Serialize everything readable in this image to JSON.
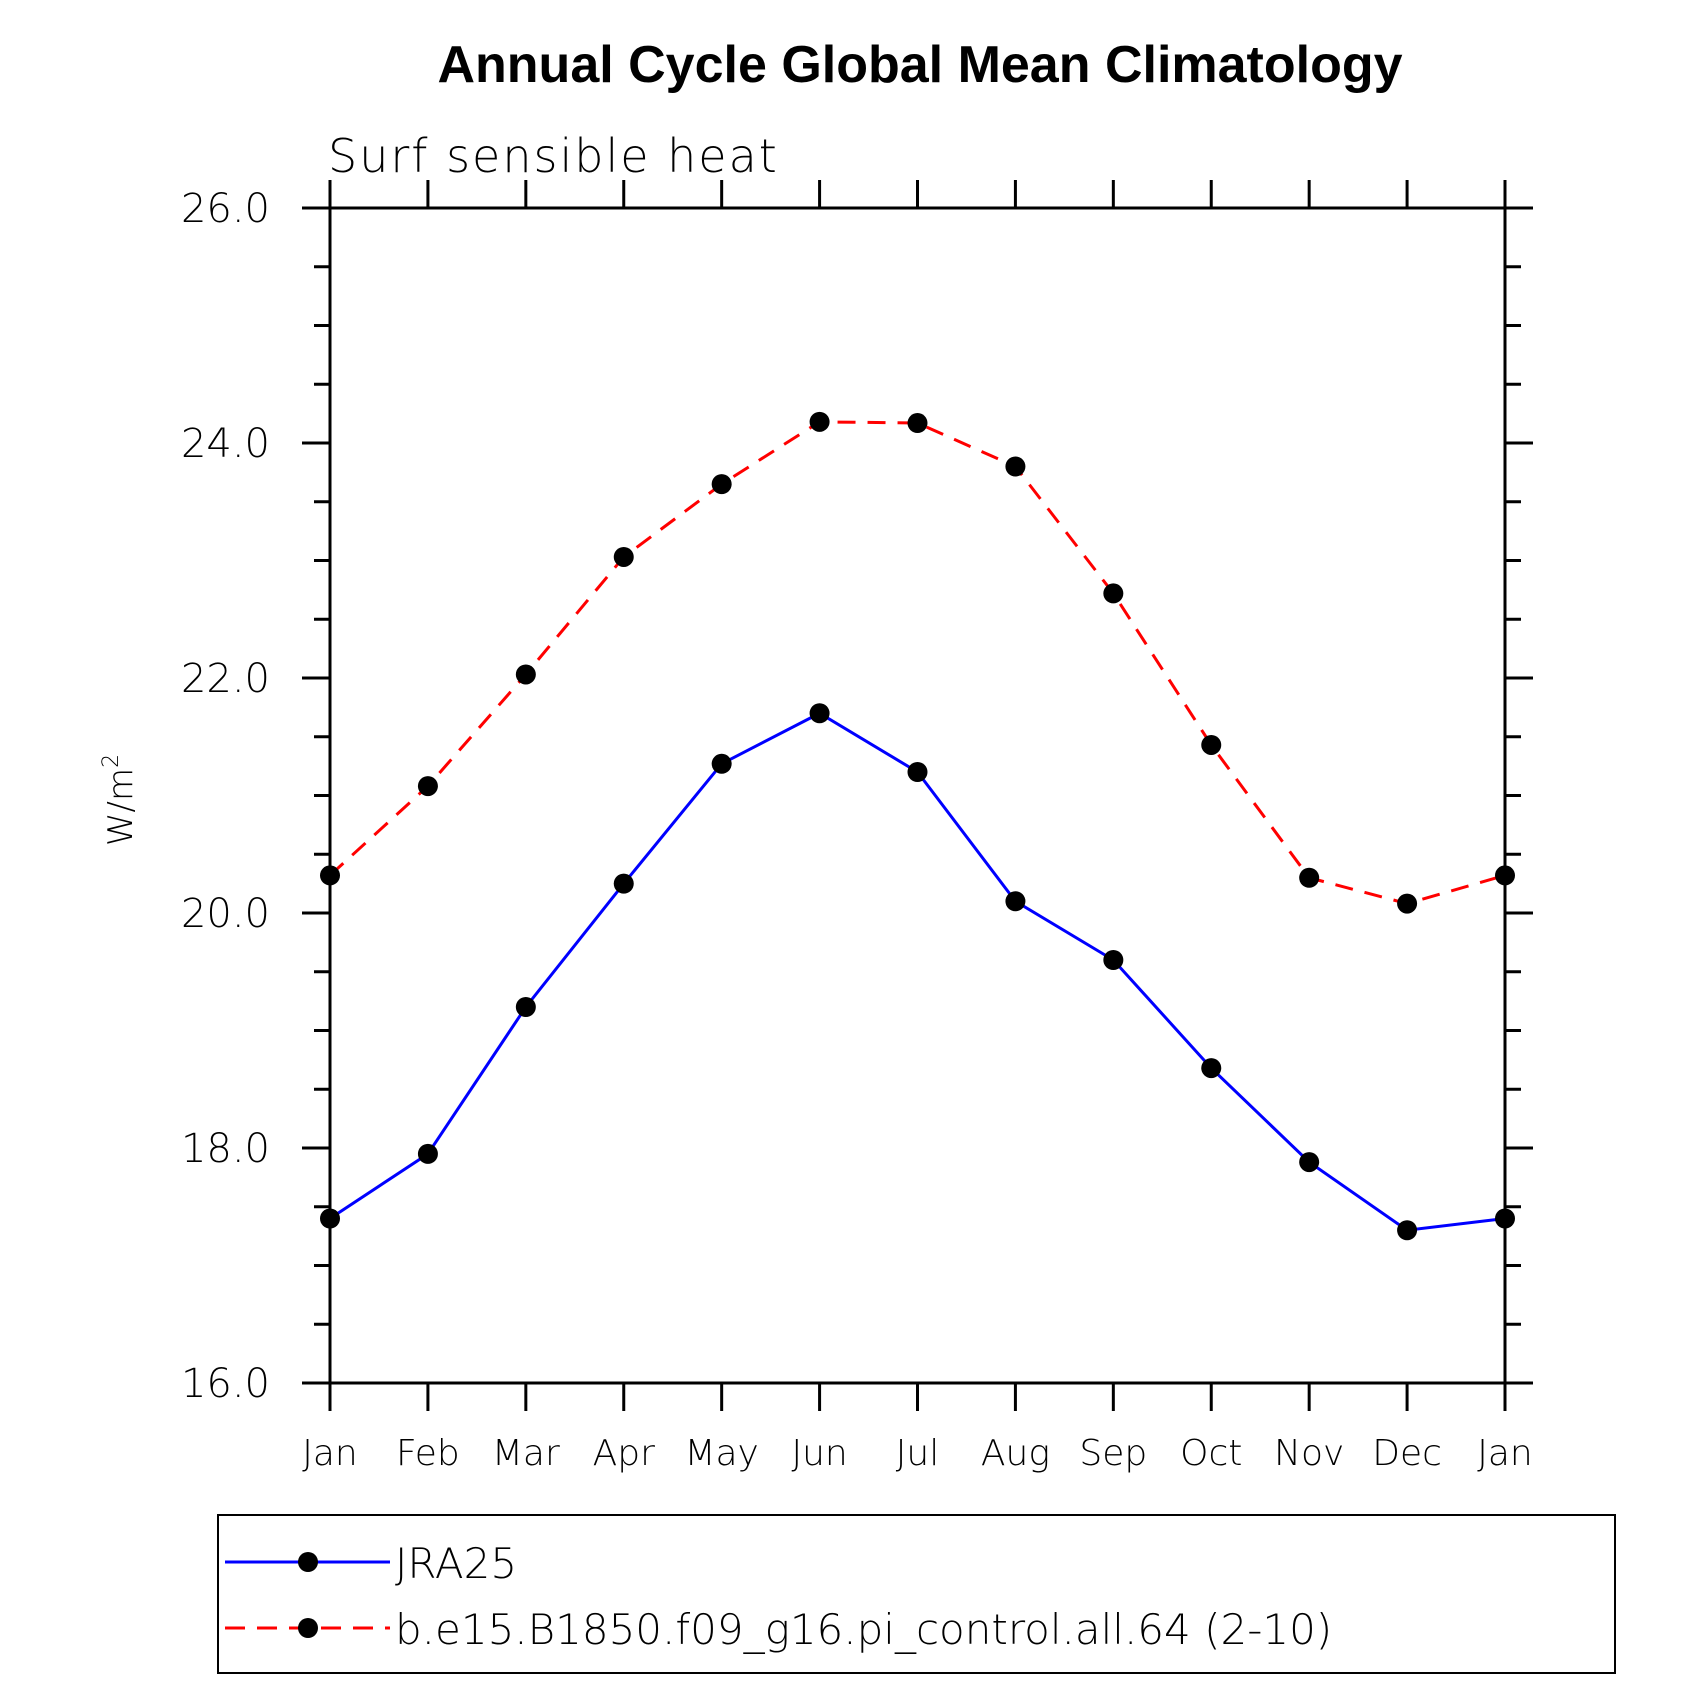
{
  "chart_data": {
    "type": "line",
    "title": "Annual Cycle Global Mean Climatology",
    "subtitle": "Surf sensible heat",
    "xlabel": "",
    "ylabel": "W/m",
    "ylabel_superscript": "2",
    "categories": [
      "Jan",
      "Feb",
      "Mar",
      "Apr",
      "May",
      "Jun",
      "Jul",
      "Aug",
      "Sep",
      "Oct",
      "Nov",
      "Dec",
      "Jan"
    ],
    "ylim": [
      16.0,
      26.0
    ],
    "yticks": [
      "16.0",
      "18.0",
      "20.0",
      "22.0",
      "24.0",
      "26.0"
    ],
    "grid": false,
    "legend_position": "bottom",
    "series": [
      {
        "name": "JRA25",
        "color": "#0000ff",
        "dash": "solid",
        "marker": "filled-circle",
        "values": [
          17.4,
          17.95,
          19.2,
          20.25,
          21.27,
          21.7,
          21.2,
          20.1,
          19.6,
          18.68,
          17.88,
          17.3,
          17.4
        ]
      },
      {
        "name": "b.e15.B1850.f09_g16.pi_control.all.64 (2-10)",
        "color": "#ff0000",
        "dash": "dashed",
        "marker": "filled-circle",
        "values": [
          20.32,
          21.08,
          22.03,
          23.03,
          23.65,
          24.18,
          24.17,
          23.8,
          22.72,
          21.43,
          20.3,
          20.08,
          20.32
        ]
      }
    ]
  }
}
